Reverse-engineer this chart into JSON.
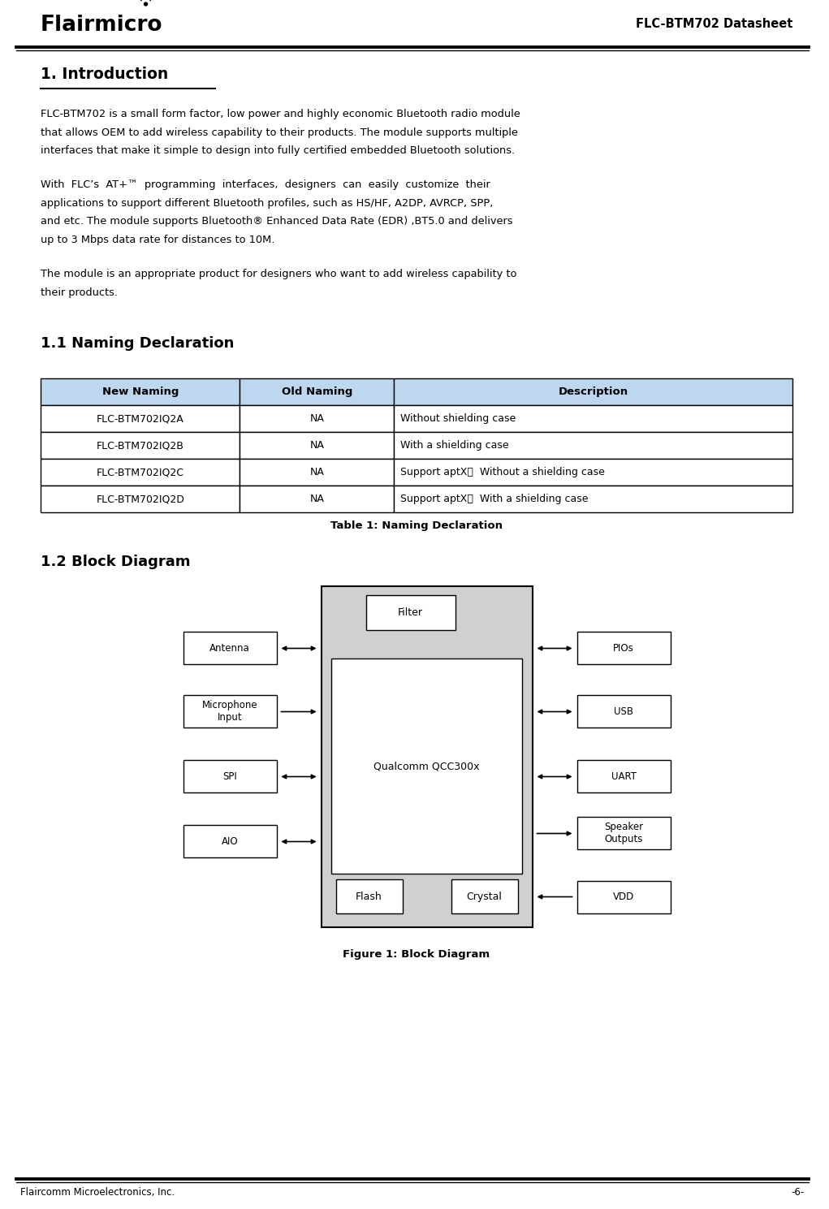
{
  "page_title": "FLC-BTM702 Datasheet",
  "company_name": "Flairmicro",
  "footer_company": "Flaircomm Microelectronics, Inc.",
  "footer_page": "-6-",
  "section1_title": "1. Introduction",
  "para1_lines": [
    "FLC-BTM702 is a small form factor, low power and highly economic Bluetooth radio module",
    "that allows OEM to add wireless capability to their products. The module supports multiple",
    "interfaces that make it simple to design into fully certified embedded Bluetooth solutions."
  ],
  "para2_lines": [
    "With  FLC’s  AT+™  programming  interfaces,  designers  can  easily  customize  their",
    "applications to support different Bluetooth profiles, such as HS/HF, A2DP, AVRCP, SPP,",
    "and etc. The module supports Bluetooth® Enhanced Data Rate (EDR) ,BT5.0 and delivers",
    "up to 3 Mbps data rate for distances to 10M."
  ],
  "para3_lines": [
    "The module is an appropriate product for designers who want to add wireless capability to",
    "their products."
  ],
  "section11_title": "1.1 Naming Declaration",
  "table_headers": [
    "New Naming",
    "Old Naming",
    "Description"
  ],
  "table_rows": [
    [
      "FLC-BTM702IQ2A",
      "NA",
      "Without shielding case"
    ],
    [
      "FLC-BTM702IQ2B",
      "NA",
      "With a shielding case"
    ],
    [
      "FLC-BTM702IQ2C",
      "NA",
      "Support aptX；  Without a shielding case"
    ],
    [
      "FLC-BTM702IQ2D",
      "NA",
      "Support aptX；  With a shielding case"
    ]
  ],
  "table_caption": "Table 1: Naming Declaration",
  "section12_title": "1.2 Block Diagram",
  "figure_caption": "Figure 1: Block Diagram",
  "header_bg": "#bdd7ee",
  "table_border": "#000000",
  "bg_color": "#ffffff",
  "text_color": "#000000",
  "chip_bg": "#d0d0d0"
}
